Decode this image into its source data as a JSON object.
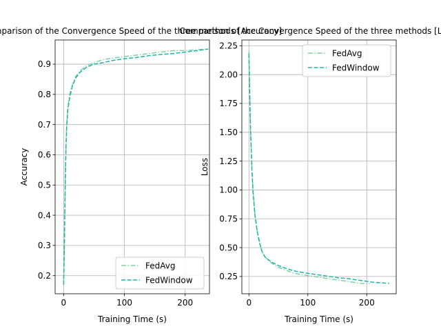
{
  "chart_data": [
    {
      "type": "line",
      "title": "Comparison of the Convergence Speed of the three methods [Accuracy]",
      "xlabel": "Training Time (s)",
      "ylabel": "Accuracy",
      "xlim": [
        -14,
        240
      ],
      "ylim": [
        0.14,
        0.98
      ],
      "xticks": [
        0,
        100,
        200
      ],
      "yticks": [
        0.2,
        0.3,
        0.4,
        0.5,
        0.6,
        0.7,
        0.8,
        0.9
      ],
      "grid": true,
      "legend": "bottom-right",
      "series": [
        {
          "name": "FedAvg",
          "color": "#7dd3a0",
          "dash": "dashdot",
          "x": [
            0,
            1,
            2,
            3,
            4,
            5,
            7,
            10,
            14,
            20,
            28,
            38,
            50,
            65,
            80,
            100,
            120,
            140,
            160,
            180,
            200,
            220,
            235
          ],
          "y": [
            0.18,
            0.28,
            0.42,
            0.55,
            0.64,
            0.7,
            0.76,
            0.8,
            0.83,
            0.86,
            0.88,
            0.895,
            0.905,
            0.915,
            0.92,
            0.925,
            0.93,
            0.935,
            0.94,
            0.945,
            0.945,
            0.948,
            0.95
          ]
        },
        {
          "name": "FedWindow",
          "color": "#20b2aa",
          "dash": "dashed",
          "x": [
            0,
            1,
            2,
            3,
            4,
            5,
            7,
            10,
            14,
            20,
            28,
            38,
            50,
            65,
            80,
            100,
            120,
            140,
            160,
            180,
            200,
            220,
            238
          ],
          "y": [
            0.17,
            0.27,
            0.41,
            0.54,
            0.63,
            0.69,
            0.75,
            0.79,
            0.825,
            0.855,
            0.875,
            0.89,
            0.9,
            0.905,
            0.912,
            0.918,
            0.922,
            0.928,
            0.932,
            0.935,
            0.94,
            0.945,
            0.95
          ]
        }
      ]
    },
    {
      "type": "line",
      "title": "Comparison of the Convergence Speed of the three methods [Loss]",
      "xlabel": "Training Time (s)",
      "ylabel": "Loss",
      "xlim": [
        -12,
        250
      ],
      "ylim": [
        0.1,
        2.3
      ],
      "xticks": [
        0,
        100,
        200
      ],
      "yticks": [
        0.25,
        0.5,
        0.75,
        1.0,
        1.25,
        1.5,
        1.75,
        2.0,
        2.25
      ],
      "ytick_labels": [
        "0.25",
        "0.50",
        "0.75",
        "1.00",
        "1.25",
        "1.50",
        "1.75",
        "2.00",
        "2.25"
      ],
      "grid": true,
      "legend": "top-right",
      "series": [
        {
          "name": "FedAvg",
          "color": "#7dd3a0",
          "dash": "dashdot",
          "x": [
            0,
            1,
            2,
            3,
            5,
            7,
            10,
            14,
            18,
            22,
            27,
            33,
            40,
            50,
            60,
            75,
            90,
            110,
            130,
            150,
            170,
            190,
            205
          ],
          "y": [
            2.2,
            1.95,
            1.7,
            1.5,
            1.2,
            1.0,
            0.8,
            0.65,
            0.55,
            0.47,
            0.42,
            0.39,
            0.36,
            0.33,
            0.31,
            0.28,
            0.265,
            0.25,
            0.235,
            0.22,
            0.205,
            0.19,
            0.185
          ]
        },
        {
          "name": "FedWindow",
          "color": "#20b2aa",
          "dash": "dashed",
          "x": [
            0,
            1,
            2,
            3,
            5,
            7,
            10,
            14,
            18,
            22,
            27,
            33,
            40,
            50,
            60,
            75,
            90,
            110,
            130,
            150,
            170,
            190,
            210,
            238
          ],
          "y": [
            2.18,
            1.92,
            1.68,
            1.48,
            1.18,
            0.98,
            0.79,
            0.64,
            0.54,
            0.47,
            0.42,
            0.395,
            0.37,
            0.345,
            0.325,
            0.3,
            0.285,
            0.27,
            0.255,
            0.24,
            0.23,
            0.215,
            0.2,
            0.19
          ]
        }
      ]
    }
  ]
}
